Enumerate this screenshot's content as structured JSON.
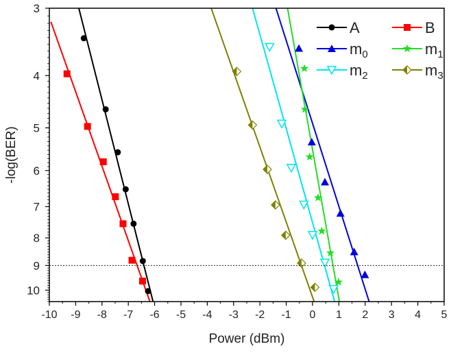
{
  "chart_data": {
    "type": "scatter",
    "title": "",
    "xlabel": "Power (dBm)",
    "ylabel": "-log(BER)",
    "xlim": [
      -10,
      5
    ],
    "ylim": [
      3,
      10.5
    ],
    "yscale": "log",
    "xticks": [
      -10,
      -9,
      -8,
      -7,
      -6,
      -5,
      -4,
      -3,
      -2,
      -1,
      0,
      1,
      2,
      3,
      4,
      5
    ],
    "yticks": [
      3,
      4,
      5,
      6,
      7,
      8,
      9,
      10
    ],
    "reference_line": {
      "y": 9,
      "style": "dashed"
    },
    "legend_position": "top-right",
    "series": [
      {
        "name": "A",
        "sub": "",
        "color": "#000000",
        "marker": "circle",
        "x": [
          -8.69,
          -7.86,
          -7.4,
          -7.1,
          -6.8,
          -6.45,
          -6.25
        ],
        "y": [
          3.41,
          4.62,
          5.55,
          6.5,
          7.53,
          8.83,
          10.04
        ],
        "fit": [
          [
            -8.88,
            3
          ],
          [
            -6.06,
            10.5
          ]
        ]
      },
      {
        "name": "B",
        "sub": "",
        "color": "#ff0000",
        "marker": "square",
        "x": [
          -9.33,
          -8.55,
          -7.95,
          -7.49,
          -7.2,
          -6.86,
          -6.46
        ],
        "y": [
          3.97,
          4.97,
          5.78,
          6.71,
          7.53,
          8.8,
          9.62
        ],
        "fit": [
          [
            -9.94,
            3.18
          ],
          [
            -6.18,
            10.5
          ]
        ]
      },
      {
        "name": "m",
        "sub": "0",
        "color": "#0000e0",
        "marker": "triangle-up",
        "x": [
          -0.52,
          -0.03,
          0.47,
          1.06,
          1.58,
          1.99
        ],
        "y": [
          3.56,
          5.31,
          6.3,
          7.2,
          8.49,
          9.36
        ],
        "fit": [
          [
            -1.39,
            3
          ],
          [
            2.15,
            10.5
          ]
        ]
      },
      {
        "name": "m",
        "sub": "1",
        "color": "#22dd22",
        "marker": "star",
        "x": [
          -0.31,
          -0.29,
          -0.11,
          0.21,
          0.35,
          0.68,
          0.99
        ],
        "y": [
          3.88,
          4.62,
          5.66,
          6.74,
          7.77,
          8.53,
          9.66
        ],
        "fit": [
          [
            -0.95,
            3
          ],
          [
            1.02,
            10.5
          ]
        ]
      },
      {
        "name": "m",
        "sub": "2",
        "color": "#00e5ee",
        "marker": "triangle-down-open",
        "x": [
          -1.63,
          -1.17,
          -0.81,
          -0.33,
          0.0,
          0.47,
          0.8
        ],
        "y": [
          3.54,
          4.91,
          5.93,
          6.94,
          7.9,
          8.89,
          9.95
        ],
        "fit": [
          [
            -2.28,
            3
          ],
          [
            0.84,
            10.5
          ]
        ]
      },
      {
        "name": "m",
        "sub": "3",
        "color": "#808000",
        "marker": "half-diamond",
        "x": [
          -2.88,
          -2.28,
          -1.72,
          -1.41,
          -1.02,
          -0.42,
          0.09
        ],
        "y": [
          3.93,
          4.94,
          5.97,
          6.95,
          7.91,
          8.91,
          9.88
        ],
        "fit": [
          [
            -3.85,
            3
          ],
          [
            0.06,
            10.5
          ]
        ]
      }
    ]
  }
}
